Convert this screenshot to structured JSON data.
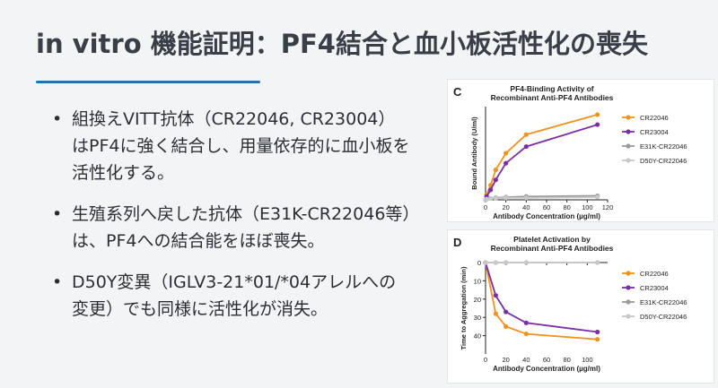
{
  "title": "in vitro 機能証明：PF4結合と血小板活性化の喪失",
  "bullets": [
    "組換えVITT抗体（CR22046, CR23004）はPF4に強く結合し、用量依存的に血小板を活性化する。",
    "生殖系列へ戻した抗体（E31K-CR22046等）は、PF4への結合能をほぼ喪失。",
    "D50Y変異（IGLV3-21*01/*04アレルへの変更）でも同様に活性化が消失。"
  ],
  "colors": {
    "CR22046": "#f0921e",
    "CR23004": "#7b2fa5",
    "E31K-CR22046": "#9a9a9a",
    "D50Y-CR22046": "#c8c8c8"
  },
  "chart_data": [
    {
      "type": "line",
      "panel_letter": "C",
      "title": "PF4-Binding Activity of\nRecombinant Anti-PF4 Antibodies",
      "xlabel": "Antibody Concentration (µg/ml)",
      "ylabel": "Bound Antibody (U/ml)",
      "xlim": [
        0,
        120
      ],
      "xticks": [
        0,
        20,
        40,
        60,
        80,
        100,
        120
      ],
      "ylim": [
        0,
        140
      ],
      "legend": "right",
      "series": [
        {
          "name": "CR22046",
          "x": [
            0,
            1,
            5,
            10,
            20,
            40,
            110
          ],
          "y": [
            0,
            8,
            22,
            45,
            70,
            98,
            128
          ]
        },
        {
          "name": "CR23004",
          "x": [
            0,
            1,
            5,
            10,
            20,
            40,
            110
          ],
          "y": [
            0,
            5,
            15,
            30,
            55,
            80,
            113
          ]
        },
        {
          "name": "E31K-CR22046",
          "x": [
            0,
            1,
            5,
            10,
            20,
            40,
            110
          ],
          "y": [
            0,
            1,
            2,
            3,
            4,
            5,
            6
          ]
        },
        {
          "name": "D50Y-CR22046",
          "x": [
            0,
            1,
            5,
            10,
            20,
            40,
            110
          ],
          "y": [
            0,
            1,
            2,
            2,
            3,
            3,
            4
          ]
        }
      ]
    },
    {
      "type": "line",
      "panel_letter": "D",
      "title": "Platelet Activation by\nRecombinant Anti-PF4 Antibodies",
      "xlabel": "Antibody Concentration (µg/ml)",
      "ylabel": "Time to Aggregation (min)",
      "xlim": [
        0,
        120
      ],
      "xticks": [
        0,
        20,
        40,
        60,
        80,
        100
      ],
      "ylim": [
        0,
        50
      ],
      "yticks": [
        0,
        10,
        20,
        30,
        40
      ],
      "y_inverted": true,
      "legend": "right",
      "series": [
        {
          "name": "CR22046",
          "x": [
            0,
            10,
            20,
            40,
            110
          ],
          "y": [
            0,
            28,
            35,
            39,
            42
          ]
        },
        {
          "name": "CR23004",
          "x": [
            0,
            10,
            20,
            40,
            110
          ],
          "y": [
            0,
            18,
            27,
            33,
            38
          ]
        },
        {
          "name": "E31K-CR22046",
          "x": [
            0,
            10,
            20,
            40,
            110
          ],
          "y": [
            0,
            0,
            0,
            0,
            0
          ]
        },
        {
          "name": "D50Y-CR22046",
          "x": [
            0,
            10,
            20,
            40,
            110
          ],
          "y": [
            0,
            0,
            0,
            0,
            0
          ]
        }
      ]
    }
  ]
}
